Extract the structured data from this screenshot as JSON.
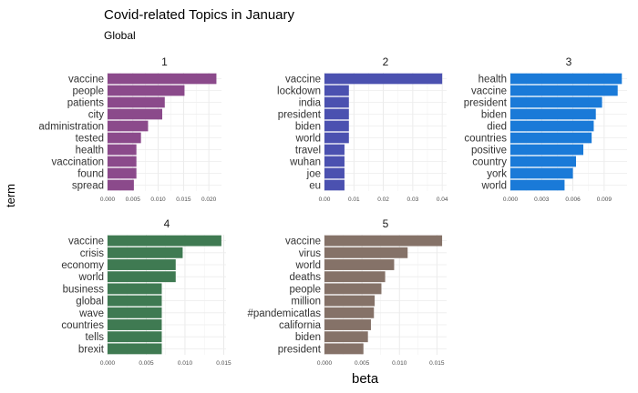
{
  "header": {
    "title": "Covid-related Topics in January",
    "subtitle": "Global",
    "xlabel": "beta",
    "ylabel": "term"
  },
  "chart_data": {
    "type": "bar",
    "orientation": "horizontal",
    "title": "Covid-related Topics in January",
    "subtitle": "Global",
    "xlabel": "beta",
    "ylabel": "term",
    "grid": true,
    "facets": [
      {
        "label": "1",
        "color": "#8b4a8b",
        "xlim": [
          0,
          0.0225
        ],
        "ticks": [
          0.0,
          0.005,
          0.01,
          0.015,
          0.02
        ],
        "tick_labels": [
          "0.000",
          "0.005",
          "0.010",
          "0.015",
          "0.020"
        ],
        "terms": [
          "vaccine",
          "people",
          "patients",
          "city",
          "administration",
          "tested",
          "health",
          "vaccination",
          "found",
          "spread"
        ],
        "values": [
          0.0215,
          0.0152,
          0.0113,
          0.0108,
          0.008,
          0.0066,
          0.0057,
          0.0057,
          0.0057,
          0.0052
        ]
      },
      {
        "label": "2",
        "color": "#4b51b0",
        "xlim": [
          0,
          0.0415
        ],
        "ticks": [
          0.0,
          0.01,
          0.02,
          0.03,
          0.04
        ],
        "tick_labels": [
          "0.00",
          "0.01",
          "0.02",
          "0.03",
          "0.04"
        ],
        "terms": [
          "vaccine",
          "lockdown",
          "india",
          "president",
          "biden",
          "world",
          "travel",
          "wuhan",
          "joe",
          "eu"
        ],
        "values": [
          0.04,
          0.0083,
          0.0083,
          0.0083,
          0.0083,
          0.0083,
          0.0068,
          0.0068,
          0.0068,
          0.0068
        ]
      },
      {
        "label": "3",
        "color": "#1a7ad8",
        "xlim": [
          0,
          0.0112
        ],
        "ticks": [
          0.0,
          0.003,
          0.006,
          0.009
        ],
        "tick_labels": [
          "0.000",
          "0.003",
          "0.006",
          "0.009"
        ],
        "terms": [
          "health",
          "vaccine",
          "president",
          "biden",
          "died",
          "countries",
          "positive",
          "country",
          "york",
          "world"
        ],
        "values": [
          0.0107,
          0.0103,
          0.0088,
          0.0082,
          0.008,
          0.0078,
          0.007,
          0.0063,
          0.006,
          0.0052
        ]
      },
      {
        "label": "4",
        "color": "#3f7a52",
        "xlim": [
          0,
          0.0153
        ],
        "ticks": [
          0.0,
          0.005,
          0.01,
          0.015
        ],
        "tick_labels": [
          "0.000",
          "0.005",
          "0.010",
          "0.015"
        ],
        "terms": [
          "vaccine",
          "crisis",
          "economy",
          "world",
          "business",
          "global",
          "wave",
          "countries",
          "tells",
          "brexit"
        ],
        "values": [
          0.0147,
          0.0097,
          0.0088,
          0.0088,
          0.007,
          0.007,
          0.007,
          0.007,
          0.007,
          0.007
        ]
      },
      {
        "label": "5",
        "color": "#857268",
        "xlim": [
          0,
          0.0163
        ],
        "ticks": [
          0.0,
          0.005,
          0.01,
          0.015
        ],
        "tick_labels": [
          "0.000",
          "0.005",
          "0.010",
          "0.015"
        ],
        "terms": [
          "vaccine",
          "virus",
          "world",
          "deaths",
          "people",
          "million",
          "#pandemicatlas",
          "california",
          "biden",
          "president"
        ],
        "values": [
          0.0157,
          0.0111,
          0.0093,
          0.0081,
          0.0076,
          0.0067,
          0.0066,
          0.0062,
          0.0058,
          0.0052
        ]
      }
    ]
  }
}
